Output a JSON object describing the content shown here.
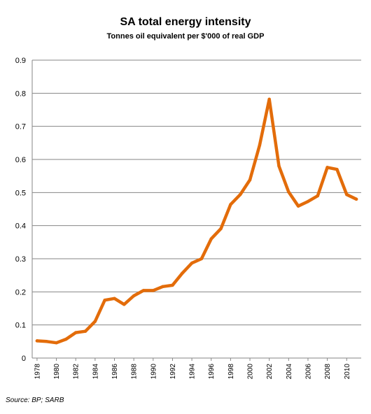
{
  "chart_data": {
    "type": "line",
    "title": "SA total energy intensity",
    "subtitle": "Tonnes oil equivalent per $'000 of real GDP",
    "xlabel": "",
    "ylabel": "",
    "source": "Source: BP; SARB",
    "ylim": [
      0,
      0.9
    ],
    "yticks": [
      "0",
      "0.1",
      "0.2",
      "0.3",
      "0.4",
      "0.5",
      "0.6",
      "0.7",
      "0.8",
      "0.9"
    ],
    "xticks": [
      "1978",
      "1980",
      "1982",
      "1984",
      "1986",
      "1988",
      "1990",
      "1992",
      "1994",
      "1996",
      "1998",
      "2000",
      "2002",
      "2004",
      "2006",
      "2008",
      "2010"
    ],
    "grid": true,
    "legend": "none",
    "color": "#E36C0A",
    "x": [
      1978,
      1979,
      1980,
      1981,
      1982,
      1983,
      1984,
      1985,
      1986,
      1987,
      1988,
      1989,
      1990,
      1991,
      1992,
      1993,
      1994,
      1995,
      1996,
      1997,
      1998,
      1999,
      2000,
      2001,
      2002,
      2003,
      2004,
      2005,
      2006,
      2007,
      2008,
      2009,
      2010,
      2011
    ],
    "series": [
      {
        "values": [
          0.052,
          0.05,
          0.046,
          0.057,
          0.077,
          0.081,
          0.111,
          0.175,
          0.18,
          0.162,
          0.188,
          0.204,
          0.204,
          0.216,
          0.22,
          0.256,
          0.287,
          0.3,
          0.36,
          0.391,
          0.464,
          0.494,
          0.538,
          0.643,
          0.782,
          0.58,
          0.502,
          0.459,
          0.473,
          0.49,
          0.576,
          0.57,
          0.494,
          0.48
        ]
      }
    ]
  }
}
